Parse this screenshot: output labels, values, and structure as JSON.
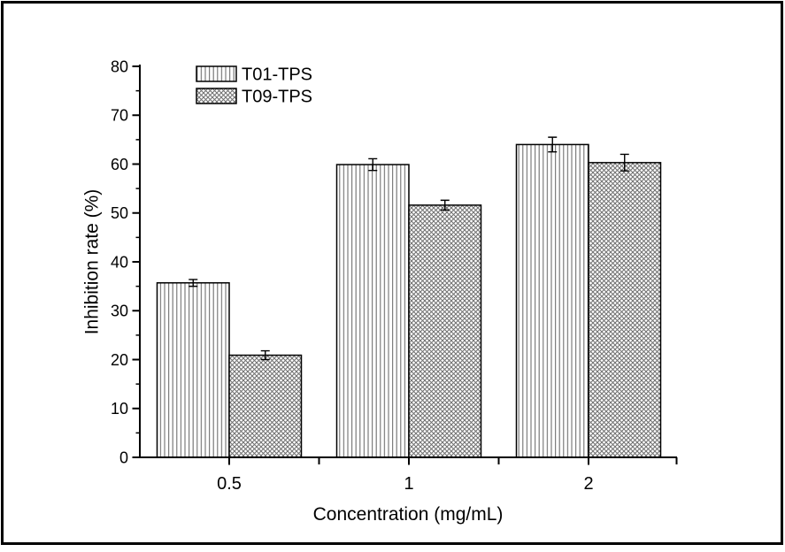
{
  "figure": {
    "background": "#ffffff",
    "border_color": "#000000"
  },
  "chart_data": {
    "type": "bar",
    "title": "",
    "categories": [
      "0.5",
      "1",
      "2"
    ],
    "series": [
      {
        "name": "T01-TPS",
        "hatch": "vertical-lines",
        "values": [
          35.7,
          59.9,
          64.0
        ],
        "errors": [
          0.7,
          1.2,
          1.5
        ]
      },
      {
        "name": "T09-TPS",
        "hatch": "diagonal-crosshatch",
        "values": [
          20.9,
          51.6,
          60.3
        ],
        "errors": [
          0.9,
          1.0,
          1.7
        ]
      }
    ],
    "xlabel": "Concentration (mg/mL)",
    "ylabel": "Inhibition rate (%)",
    "ylim": [
      0,
      80
    ],
    "y_major_step": 10,
    "y_minor_step": 5,
    "y_tick_labels": [
      "0",
      "10",
      "20",
      "30",
      "40",
      "50",
      "60",
      "70",
      "80"
    ],
    "error_bars": true,
    "grid": false,
    "legend_position": "top-left",
    "colors": {
      "bar_fill": "#ffffff",
      "bar_outline": "#000000",
      "hatch": "#6f6f6f",
      "axis": "#000000",
      "text": "#000000",
      "background": "#ffffff"
    }
  }
}
